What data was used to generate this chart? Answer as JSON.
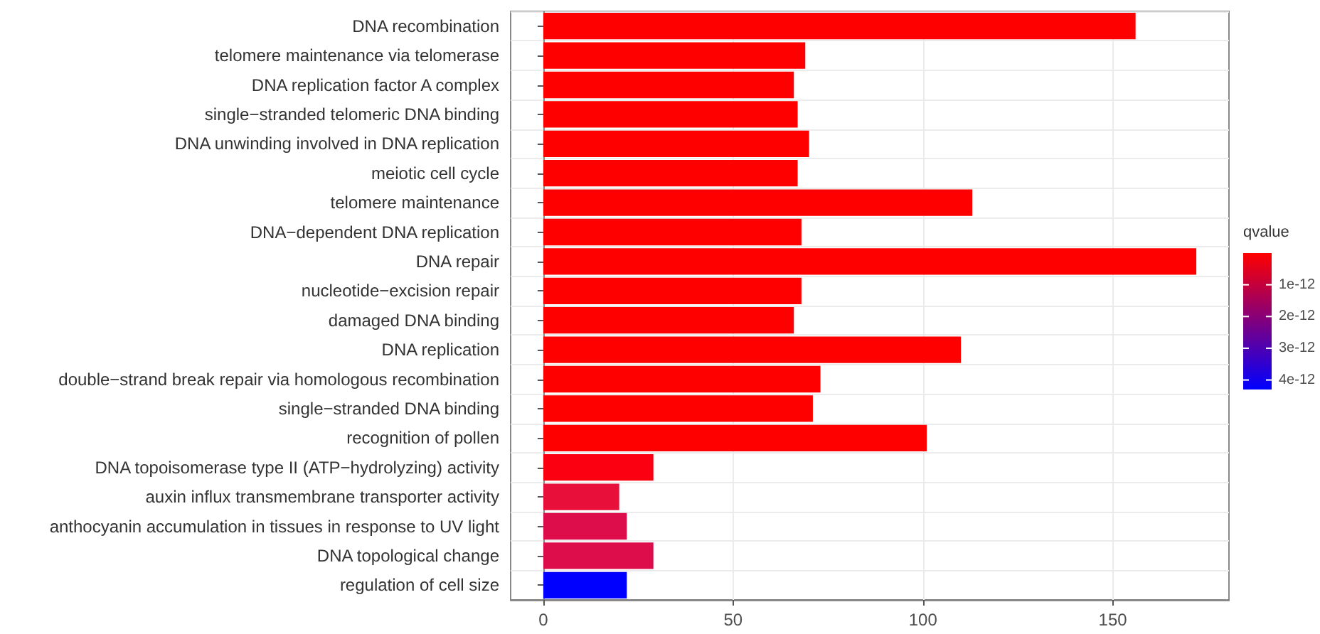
{
  "chart_data": {
    "type": "bar",
    "orientation": "horizontal",
    "categories": [
      "DNA recombination",
      "telomere maintenance via telomerase",
      "DNA replication factor A complex",
      "single−stranded telomeric DNA binding",
      "DNA unwinding involved in DNA replication",
      "meiotic cell cycle",
      "telomere maintenance",
      "DNA−dependent DNA replication",
      "DNA repair",
      "nucleotide−excision repair",
      "damaged DNA binding",
      "DNA replication",
      "double−strand break repair via homologous recombination",
      "single−stranded DNA binding",
      "recognition of pollen",
      "DNA topoisomerase type II (ATP−hydrolyzing) activity",
      "auxin influx transmembrane transporter activity",
      "anthocyanin accumulation in tissues in response to UV light",
      "DNA topological change",
      "regulation of cell size"
    ],
    "values": [
      156,
      69,
      66,
      67,
      70,
      67,
      113,
      68,
      172,
      68,
      66,
      110,
      73,
      71,
      101,
      29,
      20,
      22,
      29,
      22
    ],
    "colors": [
      "#ff0000",
      "#ff0000",
      "#ff0000",
      "#ff0000",
      "#ff0000",
      "#ff0000",
      "#ff0000",
      "#ff0000",
      "#ff0000",
      "#ff0000",
      "#ff0000",
      "#ff0000",
      "#ff0000",
      "#ff0000",
      "#ff0000",
      "#fb0010",
      "#e8103a",
      "#dd0c4a",
      "#dd0c4a",
      "#0000ff"
    ],
    "xlim": [
      -8.6,
      180.6
    ],
    "xticks": [
      0,
      50,
      100,
      150
    ],
    "grid": true,
    "clabel": "qvalue",
    "clim": [
      0,
      4.3e-12
    ],
    "cticks": [
      {
        "value": 1e-12,
        "label": "1e-12"
      },
      {
        "value": 2e-12,
        "label": "2e-12"
      },
      {
        "value": 3e-12,
        "label": "3e-12"
      },
      {
        "value": 4e-12,
        "label": "4e-12"
      }
    ]
  }
}
